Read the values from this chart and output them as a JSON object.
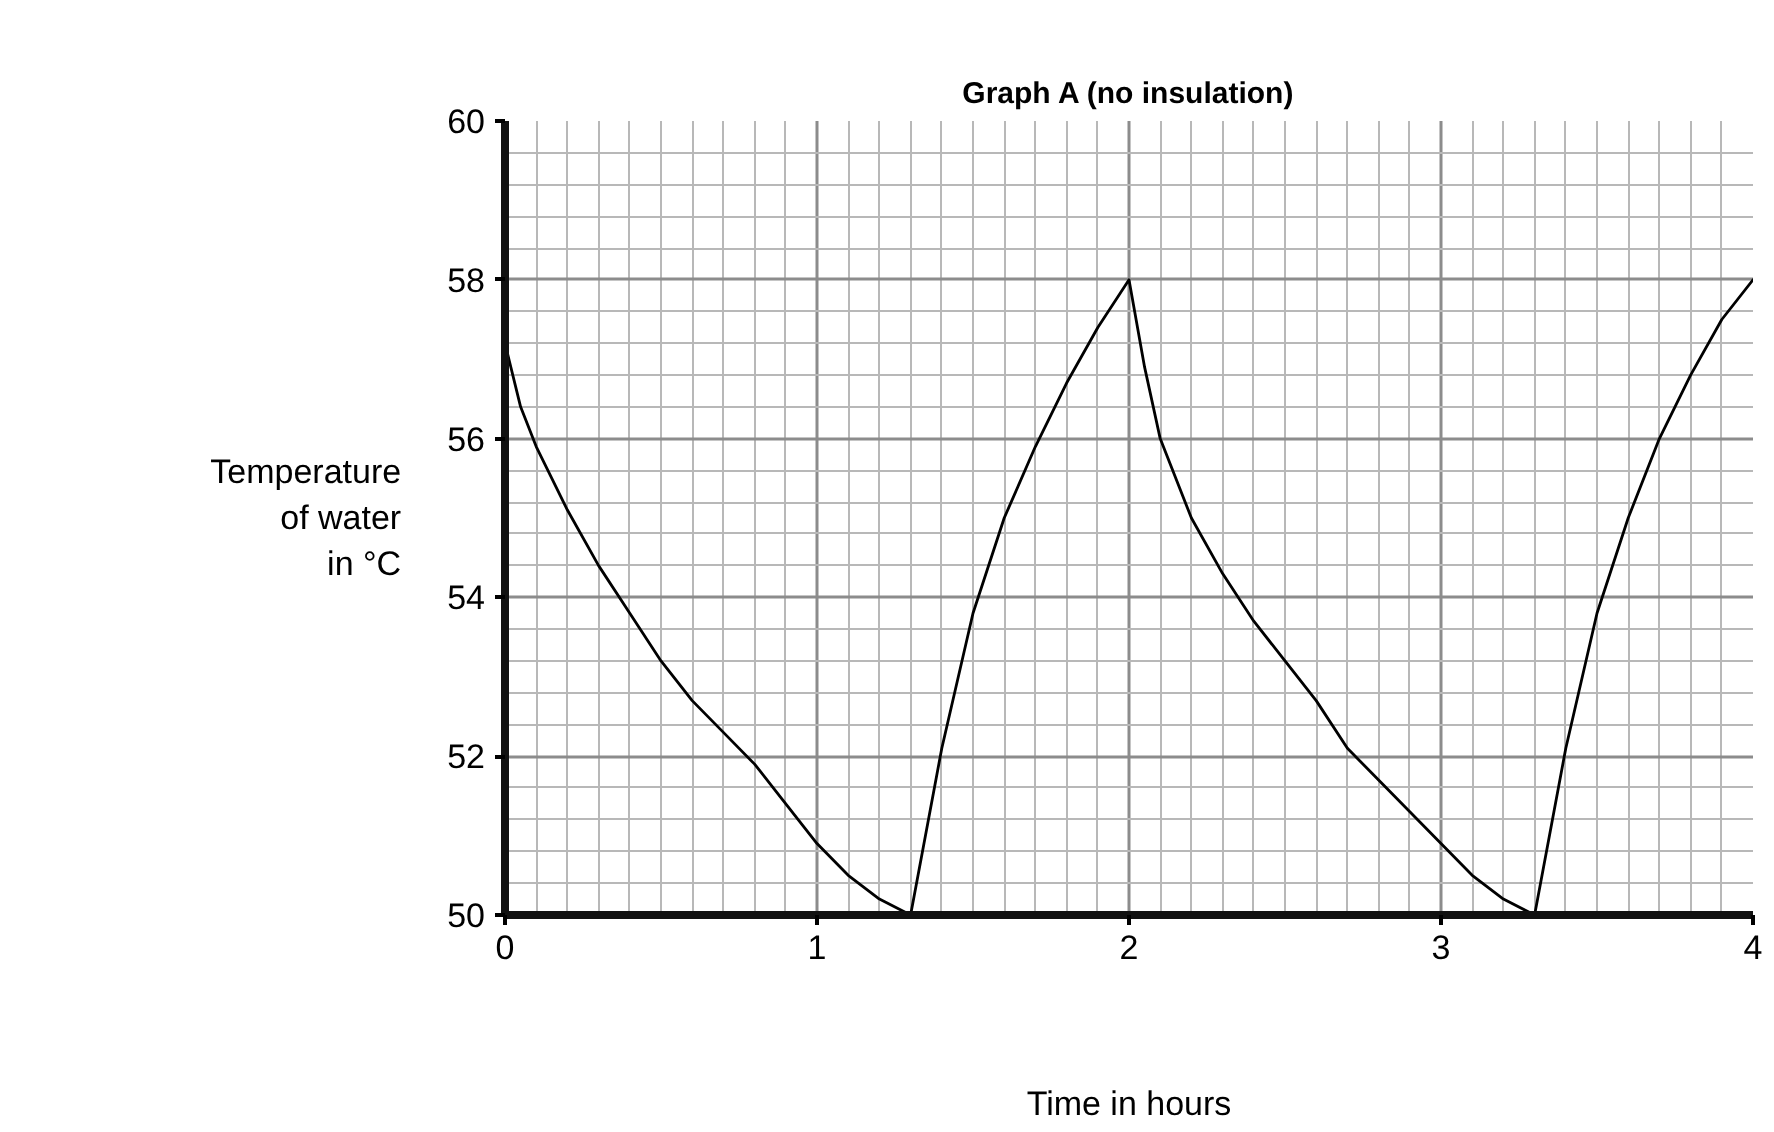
{
  "chart_data": {
    "type": "line",
    "title": "Graph A (no insulation)",
    "xlabel": "Time in hours",
    "ylabel": "Temperature\nof water\nin °C",
    "x": [
      0,
      0.05,
      0.1,
      0.2,
      0.3,
      0.4,
      0.5,
      0.6,
      0.7,
      0.8,
      0.9,
      1.0,
      1.1,
      1.2,
      1.3,
      1.4,
      1.5,
      1.6,
      1.7,
      1.8,
      1.9,
      2.0,
      2.05,
      2.1,
      2.2,
      2.3,
      2.4,
      2.5,
      2.6,
      2.7,
      2.8,
      2.9,
      3.0,
      3.1,
      3.2,
      3.3,
      3.4,
      3.5,
      3.6,
      3.7,
      3.8,
      3.9,
      4.0
    ],
    "series": [
      {
        "color": "#000000",
        "values": [
          57.2,
          56.4,
          55.9,
          55.1,
          54.4,
          53.8,
          53.2,
          52.7,
          52.3,
          51.9,
          51.4,
          50.9,
          50.5,
          50.2,
          50.0,
          52.1,
          53.8,
          55.0,
          55.9,
          56.7,
          57.4,
          58.0,
          56.9,
          56.0,
          55.0,
          54.3,
          53.7,
          53.2,
          52.7,
          52.1,
          51.7,
          51.3,
          50.9,
          50.5,
          50.2,
          50.0,
          52.1,
          53.8,
          55.0,
          56.0,
          56.8,
          57.5,
          58.0
        ]
      }
    ],
    "xlim": [
      0,
      4
    ],
    "ylim": [
      50,
      60
    ],
    "xticks": [
      0,
      1,
      2,
      3,
      4
    ],
    "yticks": [
      50,
      52,
      54,
      56,
      58,
      60
    ],
    "grid": true,
    "marker": "none",
    "line_style": "solid"
  }
}
